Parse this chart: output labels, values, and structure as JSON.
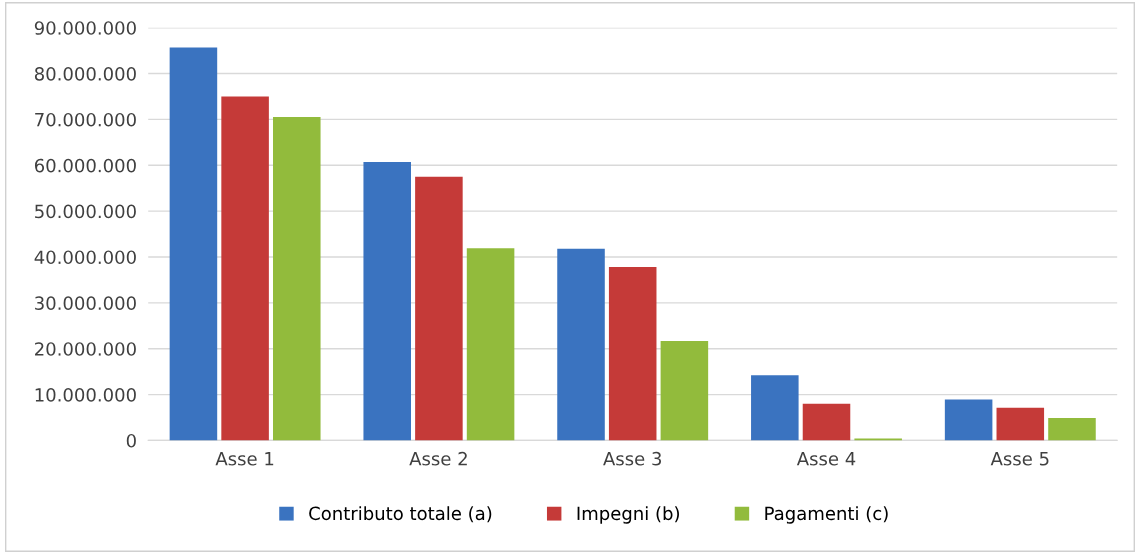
{
  "chart_data": {
    "type": "bar",
    "categories": [
      "Asse 1",
      "Asse 2",
      "Asse 3",
      "Asse 4",
      "Asse 5"
    ],
    "series": [
      {
        "name": "Contributo totale (a)",
        "color": "#3a73c0",
        "values": [
          85700000,
          60700000,
          41800000,
          14200000,
          8900000
        ]
      },
      {
        "name": "Impegni (b)",
        "color": "#c53a38",
        "values": [
          75000000,
          57500000,
          37800000,
          8000000,
          7100000
        ]
      },
      {
        "name": "Pagamenti (c)",
        "color": "#92bb3c",
        "values": [
          70500000,
          41900000,
          21700000,
          400000,
          4900000
        ]
      }
    ],
    "ylim": [
      0,
      90000000
    ],
    "yticks": [
      {
        "value": 0,
        "label": "0"
      },
      {
        "value": 10000000,
        "label": "10.000.000"
      },
      {
        "value": 20000000,
        "label": "20.000.000"
      },
      {
        "value": 30000000,
        "label": "30.000.000"
      },
      {
        "value": 40000000,
        "label": "40.000.000"
      },
      {
        "value": 50000000,
        "label": "50.000.000"
      },
      {
        "value": 60000000,
        "label": "60.000.000"
      },
      {
        "value": 70000000,
        "label": "70.000.000"
      },
      {
        "value": 80000000,
        "label": "80.000.000"
      },
      {
        "value": 90000000,
        "label": "90.000.000"
      }
    ],
    "grid": "y",
    "legend": "bottom"
  }
}
